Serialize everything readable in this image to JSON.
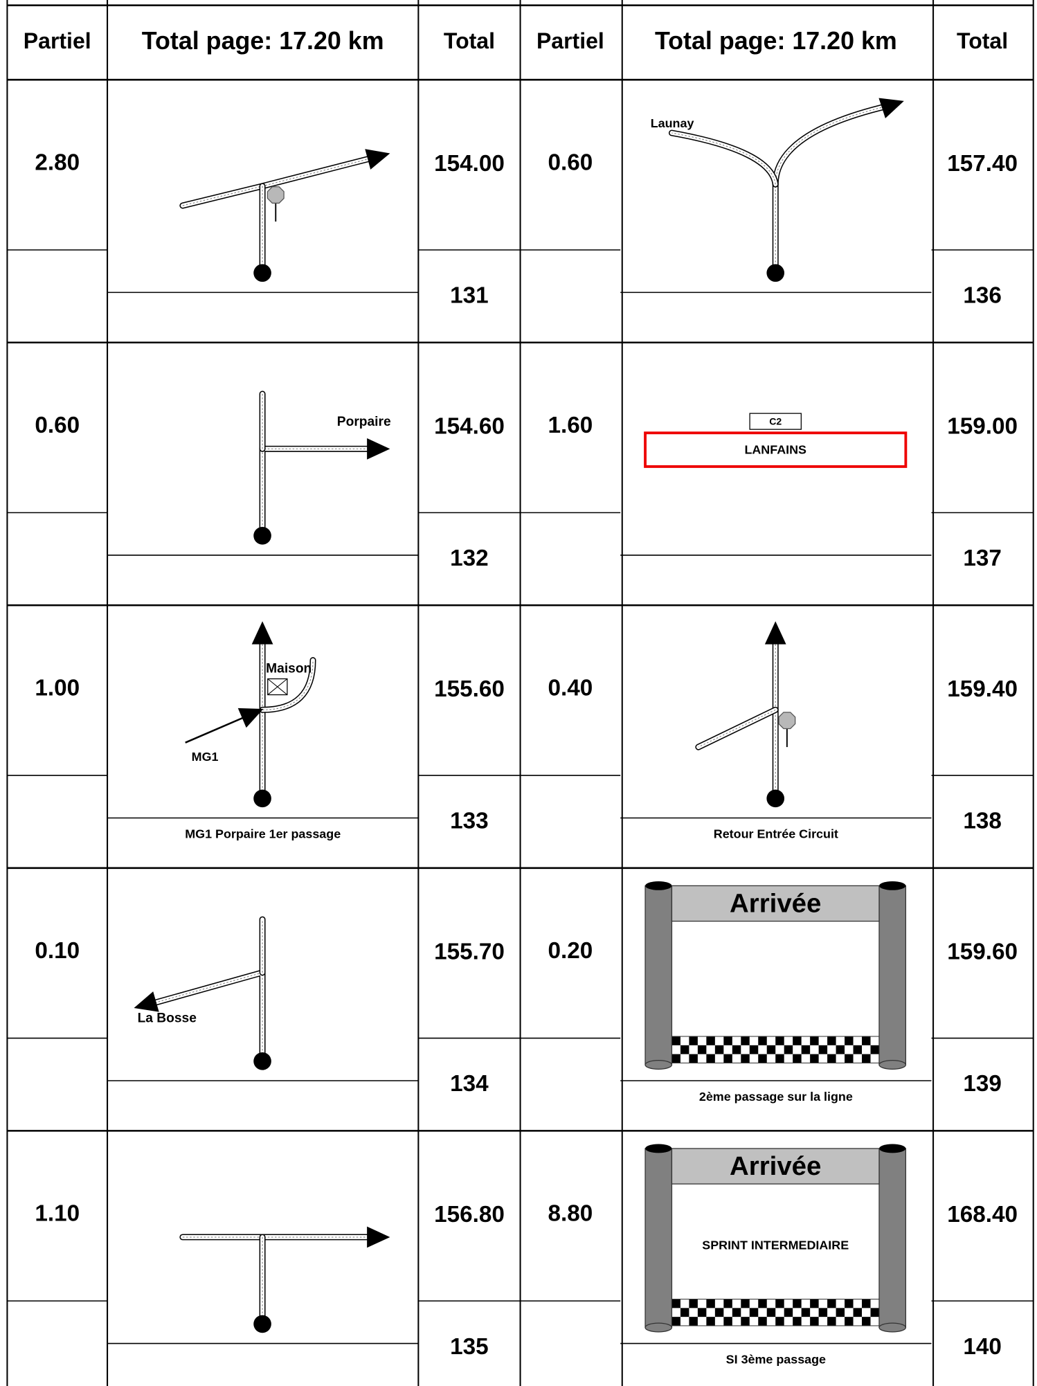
{
  "header": {
    "partiel": "Partiel",
    "title": "Total page: 17.20 km",
    "total": "Total"
  },
  "columns": [
    {
      "rows": [
        {
          "partiel": "2.80",
          "total": "154.00",
          "number": "131"
        },
        {
          "partiel": "0.60",
          "total": "154.60",
          "number": "132",
          "labels": [
            "Porpaire"
          ]
        },
        {
          "partiel": "1.00",
          "total": "155.60",
          "number": "133",
          "caption": "MG1 Porpaire 1er passage",
          "labels": [
            "Maison",
            "MG1"
          ]
        },
        {
          "partiel": "0.10",
          "total": "155.70",
          "number": "134",
          "labels": [
            "La Bosse"
          ]
        },
        {
          "partiel": "1.10",
          "total": "156.80",
          "number": "135"
        }
      ]
    },
    {
      "rows": [
        {
          "partiel": "0.60",
          "total": "157.40",
          "number": "136",
          "labels": [
            "Launay"
          ]
        },
        {
          "partiel": "1.60",
          "total": "159.00",
          "number": "137",
          "labels": [
            "C2",
            "LANFAINS"
          ]
        },
        {
          "partiel": "0.40",
          "total": "159.40",
          "number": "138",
          "caption": "Retour Entrée Circuit"
        },
        {
          "partiel": "0.20",
          "total": "159.60",
          "number": "139",
          "caption": "2ème passage sur la ligne",
          "labels": [
            "Arrivée"
          ]
        },
        {
          "partiel": "8.80",
          "total": "168.40",
          "number": "140",
          "caption": "SI 3ème passage",
          "labels": [
            "Arrivée",
            "SPRINT INTERMEDIAIRE"
          ]
        }
      ]
    }
  ]
}
